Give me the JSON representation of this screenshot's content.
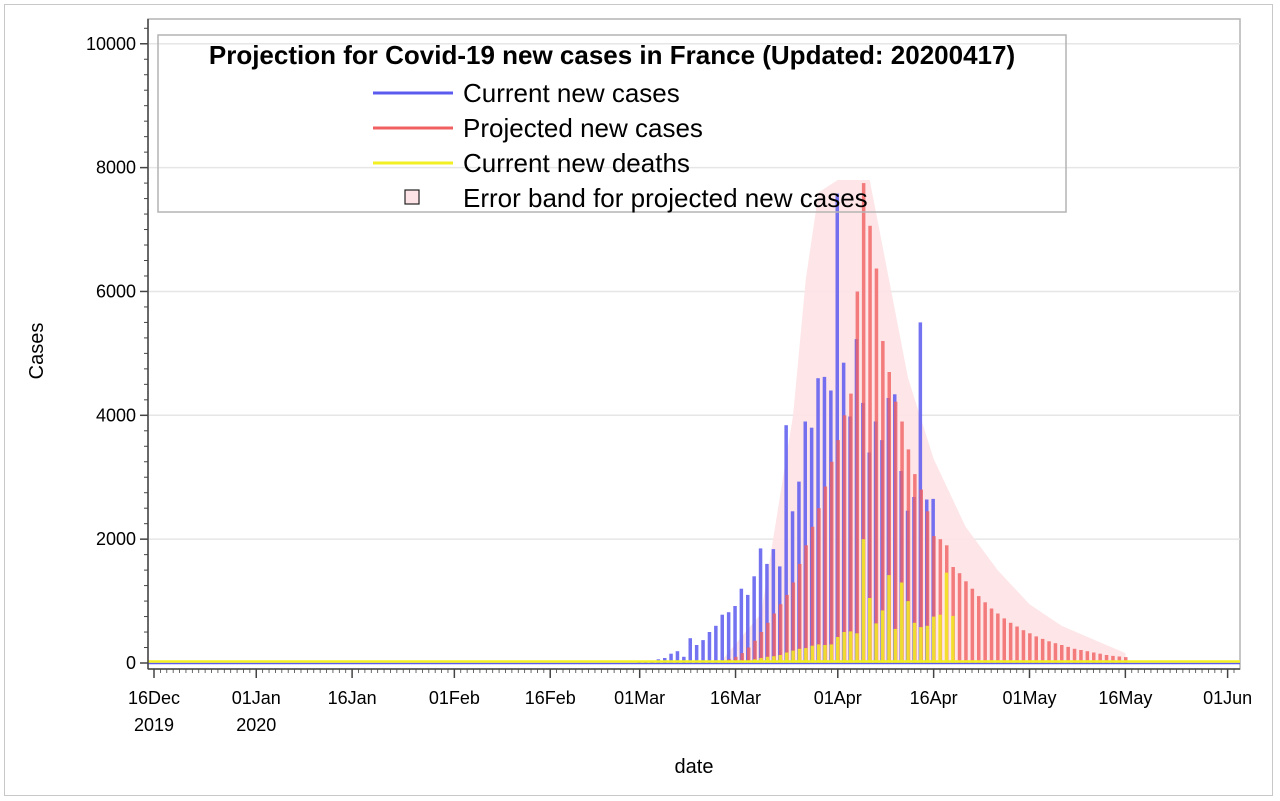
{
  "chart_data": {
    "type": "bar",
    "title": "Projection for Covid-19 new cases in France (Updated: 20200417)",
    "xlabel": "date",
    "ylabel": "Cases",
    "ylim": [
      0,
      10400
    ],
    "y_ticks": [
      0,
      2000,
      4000,
      6000,
      8000,
      10000
    ],
    "y_tick_labels": [
      "0",
      "2000",
      "4000",
      "6000",
      "8000",
      "10000"
    ],
    "x_range": [
      "2019-12-16",
      "2020-06-02"
    ],
    "x_ticks": [
      {
        "date": "2019-12-16",
        "label": "16Dec",
        "sublabel": "2019"
      },
      {
        "date": "2020-01-01",
        "label": "01Jan",
        "sublabel": "2020"
      },
      {
        "date": "2020-01-16",
        "label": "16Jan",
        "sublabel": ""
      },
      {
        "date": "2020-02-01",
        "label": "01Feb",
        "sublabel": ""
      },
      {
        "date": "2020-02-16",
        "label": "16Feb",
        "sublabel": ""
      },
      {
        "date": "2020-03-01",
        "label": "01Mar",
        "sublabel": ""
      },
      {
        "date": "2020-03-16",
        "label": "16Mar",
        "sublabel": ""
      },
      {
        "date": "2020-04-01",
        "label": "01Apr",
        "sublabel": ""
      },
      {
        "date": "2020-04-16",
        "label": "16Apr",
        "sublabel": ""
      },
      {
        "date": "2020-05-01",
        "label": "01May",
        "sublabel": ""
      },
      {
        "date": "2020-05-16",
        "label": "16May",
        "sublabel": ""
      },
      {
        "date": "2020-06-01",
        "label": "01Jun",
        "sublabel": ""
      }
    ],
    "grid": true,
    "legend": {
      "placement": "top",
      "entries": [
        {
          "label": "Current new cases",
          "symbol": "line",
          "color": "#5b5bf0"
        },
        {
          "label": "Projected new cases",
          "symbol": "line",
          "color": "#f06060"
        },
        {
          "label": "Current new deaths",
          "symbol": "line",
          "color": "#f2ef22"
        },
        {
          "label": "Error band for projected new cases",
          "symbol": "square",
          "color": "#fde2e6"
        }
      ]
    },
    "series": [
      {
        "name": "Current new cases",
        "color": "#5b5bf0",
        "start_date": "2020-03-01",
        "values": [
          40,
          30,
          40,
          60,
          80,
          150,
          190,
          100,
          400,
          290,
          370,
          500,
          600,
          780,
          820,
          920,
          1200,
          1100,
          1400,
          1850,
          1600,
          1840,
          1560,
          3840,
          2450,
          2930,
          3900,
          3800,
          4600,
          4620,
          4400,
          7580,
          4850,
          3980,
          5230,
          4200,
          3400,
          3900,
          3600,
          4280,
          4340,
          3100,
          2460,
          2680,
          5500,
          2640,
          2650
        ]
      },
      {
        "name": "Projected new cases",
        "color": "#f06060",
        "start_date": "2020-03-14",
        "values": [
          40,
          60,
          100,
          160,
          250,
          360,
          500,
          650,
          800,
          950,
          1100,
          1300,
          1600,
          1900,
          2200,
          2500,
          2850,
          3250,
          3600,
          4000,
          4350,
          6000,
          7750,
          7060,
          6370,
          5200,
          4700,
          4220,
          3900,
          3450,
          3050,
          2800,
          2450,
          2050,
          2000,
          1900,
          1550,
          1450,
          1320,
          1200,
          1080,
          980,
          880,
          800,
          720,
          650,
          590,
          530,
          480,
          430,
          390,
          350,
          320,
          290,
          260,
          230,
          210,
          190,
          170,
          150,
          130,
          115,
          105,
          95
        ]
      },
      {
        "name": "Current new deaths",
        "color": "#f2ef22",
        "start_date": "2020-03-14",
        "values": [
          20,
          20,
          30,
          30,
          40,
          60,
          80,
          100,
          110,
          130,
          170,
          200,
          230,
          240,
          280,
          300,
          290,
          300,
          420,
          500,
          510,
          480,
          2000,
          1050,
          640,
          850,
          1420,
          550,
          1300,
          1000,
          650,
          580,
          600,
          750,
          780,
          1460,
          760
        ]
      }
    ],
    "error_band": {
      "name": "Error band for projected new cases",
      "color": "#fde2e6",
      "points": [
        {
          "date": "2020-03-14",
          "lower": 0,
          "upper": 60
        },
        {
          "date": "2020-03-20",
          "lower": 0,
          "upper": 800
        },
        {
          "date": "2020-03-25",
          "lower": 0,
          "upper": 4000
        },
        {
          "date": "2020-03-27",
          "lower": 0,
          "upper": 6200
        },
        {
          "date": "2020-03-29",
          "lower": 0,
          "upper": 7600
        },
        {
          "date": "2020-04-01",
          "lower": 0,
          "upper": 7800
        },
        {
          "date": "2020-04-06",
          "lower": 0,
          "upper": 7800
        },
        {
          "date": "2020-04-09",
          "lower": 0,
          "upper": 6200
        },
        {
          "date": "2020-04-12",
          "lower": 0,
          "upper": 4600
        },
        {
          "date": "2020-04-16",
          "lower": 0,
          "upper": 3300
        },
        {
          "date": "2020-04-21",
          "lower": 0,
          "upper": 2200
        },
        {
          "date": "2020-04-26",
          "lower": 0,
          "upper": 1500
        },
        {
          "date": "2020-05-01",
          "lower": 0,
          "upper": 950
        },
        {
          "date": "2020-05-06",
          "lower": 0,
          "upper": 600
        },
        {
          "date": "2020-05-11",
          "lower": 0,
          "upper": 380
        },
        {
          "date": "2020-05-16",
          "lower": 0,
          "upper": 160
        }
      ]
    }
  }
}
